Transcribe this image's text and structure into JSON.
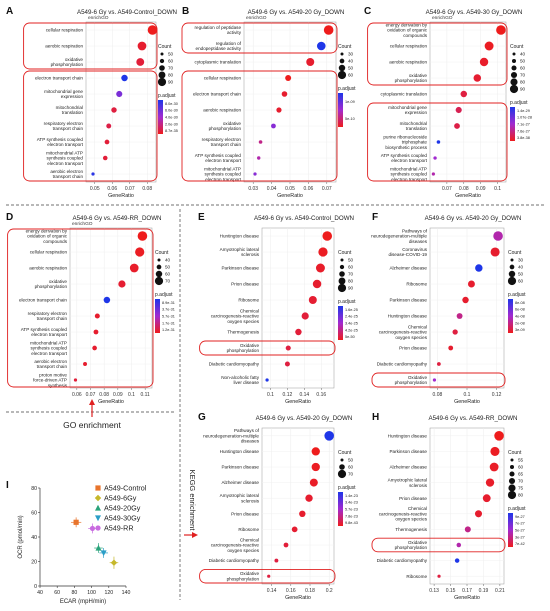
{
  "figure": {
    "section_labels": {
      "go": "GO enrichment",
      "kegg": "KEGG enrichment"
    },
    "size_legend_title": "Count",
    "color_legend_title": "p.adjust",
    "x_axis_label": "GeneRatio",
    "colors": {
      "low": "#ee1c1c",
      "mid": "#a22ad0",
      "high": "#1e36e8",
      "highlight_box": "#e02020"
    }
  },
  "chart_data": [
    {
      "id": "A",
      "type": "scatter",
      "title": "A549-6 Gy vs. A549-Control_DOWN",
      "subtitle": "enrichGO",
      "xlabel": "GeneRatio",
      "xticks": [
        0.05,
        0.06,
        0.07,
        0.08
      ],
      "xlim": [
        0.045,
        0.085
      ],
      "count_legend": [
        50,
        60,
        70,
        80,
        90
      ],
      "padj_legend": [
        "8.0e-30",
        "6.0e-30",
        "4.0e-30",
        "2.0e-30",
        "8.7e-35"
      ],
      "terms": [
        "cellular respiration",
        "aerobic respiration",
        "oxidative phosphorylation",
        "electron transport chain",
        "mitochondrial gene expression",
        "mitochondrial translation",
        "respiratory electron transport chain",
        "ATP synthesis coupled electron transport",
        "mitochondrial ATP synthesis coupled electron transport",
        "aerobic electron transport chain"
      ],
      "x": [
        0.083,
        0.077,
        0.076,
        0.067,
        0.064,
        0.061,
        0.058,
        0.057,
        0.056,
        0.049
      ],
      "count": [
        90,
        85,
        80,
        72,
        70,
        66,
        63,
        62,
        61,
        53
      ],
      "color": [
        0.0,
        0.05,
        0.08,
        1.0,
        0.65,
        0.1,
        0.12,
        0.08,
        0.08,
        0.95
      ],
      "boxes": [
        [
          0,
          2
        ],
        [
          3,
          9
        ]
      ]
    },
    {
      "id": "B",
      "type": "scatter",
      "title": "A549-6 Gy vs. A549-20 Gy_DOWN",
      "subtitle": "enrichGO",
      "xlabel": "GeneRatio",
      "xticks": [
        0.03,
        0.04,
        0.05,
        0.06,
        0.07
      ],
      "xlim": [
        0.025,
        0.075
      ],
      "count_legend": [
        30,
        40,
        50,
        60
      ],
      "padj_legend": [
        "1e-09",
        "5e-10"
      ],
      "terms": [
        "regulation of peptidase activity",
        "regulation of endopeptidase activity",
        "cytoplasmic translation",
        "cellular respiration",
        "electron transport chain",
        "aerobic respiration",
        "oxidative phosphorylation",
        "respiratory electron transport chain",
        "ATP synthesis coupled electron transport",
        "mitochondrial ATP synthesis coupled electron transport"
      ],
      "x": [
        0.071,
        0.067,
        0.061,
        0.049,
        0.047,
        0.044,
        0.041,
        0.034,
        0.033,
        0.031
      ],
      "count": [
        60,
        55,
        52,
        42,
        40,
        38,
        36,
        30,
        29,
        28
      ],
      "color": [
        0.0,
        1.0,
        0.05,
        0.0,
        0.05,
        0.05,
        0.6,
        0.3,
        0.4,
        0.6
      ],
      "boxes": [
        [
          0,
          1
        ],
        [
          3,
          9
        ]
      ]
    },
    {
      "id": "C",
      "type": "scatter",
      "title": "A549-6 Gy vs. A549-30 Gy_DOWN",
      "subtitle": "enrichGO",
      "xlabel": "GeneRatio",
      "xticks": [
        0.07,
        0.08,
        0.09,
        0.1
      ],
      "xlim": [
        0.06,
        0.105
      ],
      "count_legend": [
        40,
        50,
        60,
        70,
        80,
        90
      ],
      "padj_legend": [
        "1.4e-29",
        "1.07e-28",
        "7.1e-27",
        "7.6e-27",
        "3.8e-38"
      ],
      "terms": [
        "energy derivation by oxidation of organic compounds",
        "cellular respiration",
        "aerobic respiration",
        "oxidative phosphorylation",
        "cytoplasmic translation",
        "mitochondrial gene expression",
        "mitochondrial translation",
        "purine ribonucleoside triphosphate biosynthetic process",
        "ATP synthesis coupled electron transport",
        "mitochondrial ATP synthesis coupled electron transport"
      ],
      "x": [
        0.102,
        0.095,
        0.092,
        0.088,
        0.08,
        0.077,
        0.076,
        0.065,
        0.063,
        0.062
      ],
      "count": [
        90,
        86,
        83,
        78,
        72,
        70,
        68,
        55,
        54,
        53
      ],
      "color": [
        0.0,
        0.02,
        0.04,
        0.06,
        0.1,
        0.15,
        0.12,
        1.0,
        0.5,
        0.4
      ],
      "boxes": [
        [
          0,
          3
        ],
        [
          5,
          9
        ]
      ]
    },
    {
      "id": "D",
      "type": "scatter",
      "title": "A549-6 Gy vs. A549-RR_DOWN",
      "subtitle": "enrichGO",
      "xlabel": "GeneRatio",
      "xticks": [
        0.06,
        0.07,
        0.08,
        0.09,
        0.1,
        0.11
      ],
      "xlim": [
        0.055,
        0.115
      ],
      "count_legend": [
        40,
        50,
        60,
        70
      ],
      "padj_legend": [
        "8.9e-31",
        "3.7e-31",
        "5.7e-31",
        "1.7e-31",
        "1.2e-31"
      ],
      "terms": [
        "energy derivation by oxidation of organic compounds",
        "cellular respiration",
        "aerobic respiration",
        "oxidative phosphorylation",
        "electron transport chain",
        "respiratory electron transport chain",
        "ATP synthesis coupled electron transport",
        "mitochondrial ATP synthesis coupled electron transport",
        "aerobic electron transport chain",
        "proton motive force-driven ATP synthesis"
      ],
      "x": [
        0.108,
        0.106,
        0.102,
        0.093,
        0.082,
        0.075,
        0.074,
        0.073,
        0.066,
        0.059
      ],
      "count": [
        75,
        73,
        70,
        62,
        58,
        50,
        49,
        48,
        44,
        40
      ],
      "color": [
        0.0,
        0.02,
        0.04,
        0.06,
        1.0,
        0.05,
        0.05,
        0.05,
        0.05,
        0.08
      ],
      "boxes": [
        [
          0,
          9
        ]
      ]
    },
    {
      "id": "E",
      "type": "scatter",
      "title": "A549-6 Gy vs. A549-Control_DOWN",
      "subtitle": "",
      "xlabel": "GeneRatio",
      "xticks": [
        0.1,
        0.12,
        0.14,
        0.16
      ],
      "xlim": [
        0.09,
        0.175
      ],
      "count_legend": [
        50,
        60,
        70,
        80,
        90
      ],
      "padj_legend": [
        "1.6e-25",
        "2.4e-25",
        "3.4e-25",
        "4.2e-25",
        "5e-50"
      ],
      "terms": [
        "Huntington disease",
        "Amyotrophic lateral sclerosis",
        "Parkinson disease",
        "Prion disease",
        "Ribosome",
        "Chemical carcinogenesis-reactive oxygen species",
        "Thermogenesis",
        "Oxidative phosphorylation",
        "Diabetic cardiomyopathy",
        "Non-alcoholic fatty liver disease"
      ],
      "x": [
        0.167,
        0.162,
        0.159,
        0.155,
        0.15,
        0.141,
        0.133,
        0.121,
        0.12,
        0.096
      ],
      "count": [
        90,
        88,
        86,
        83,
        80,
        75,
        70,
        62,
        61,
        50
      ],
      "color": [
        0.0,
        0.02,
        0.04,
        0.05,
        0.06,
        0.08,
        0.08,
        0.1,
        0.1,
        1.0
      ],
      "boxes": [
        [
          7,
          7
        ]
      ]
    },
    {
      "id": "F",
      "type": "scatter",
      "title": "A549-6 Gy vs. A549-20 Gy_DOWN",
      "subtitle": "",
      "xlabel": "GeneRatio",
      "xticks": [
        0.08,
        0.1,
        0.12
      ],
      "xlim": [
        0.075,
        0.125
      ],
      "count_legend": [
        30,
        40,
        50,
        60
      ],
      "padj_legend": [
        "8e-08",
        "6e-08",
        "4e-08",
        "2e-08",
        "3e-09"
      ],
      "terms": [
        "Pathways of neurodegeneration-multiple diseases",
        "Coronavirus disease-COVID-19",
        "Alzheimer disease",
        "Ribosome",
        "Parkinson disease",
        "Huntington disease",
        "Chemical carcinogenesis-reactive oxygen species",
        "Prion disease",
        "Diabetic cardiomyopathy",
        "Oxidative phosphorylation"
      ],
      "x": [
        0.121,
        0.119,
        0.108,
        0.103,
        0.099,
        0.095,
        0.092,
        0.089,
        0.081,
        0.078
      ],
      "count": [
        60,
        58,
        52,
        50,
        48,
        46,
        44,
        42,
        38,
        36
      ],
      "color": [
        0.4,
        0.05,
        1.0,
        0.05,
        0.05,
        0.3,
        0.1,
        0.05,
        0.1,
        0.5
      ],
      "boxes": [
        [
          9,
          9
        ]
      ]
    },
    {
      "id": "G",
      "type": "scatter",
      "title": "A549-6 Gy vs. A549-20 Gy_DOWN",
      "subtitle": "",
      "xlabel": "GeneRatio",
      "xticks": [
        0.14,
        0.16,
        0.18,
        0.2
      ],
      "xlim": [
        0.13,
        0.205
      ],
      "count_legend": [
        50,
        60,
        70
      ],
      "padj_legend": [
        "1.4e-23",
        "3.4e-23",
        "5.7e-23",
        "7.8e-23",
        "9.8e-43"
      ],
      "terms": [
        "Pathways of neurodegeneration-multiple diseases",
        "Huntington disease",
        "Parkinson disease",
        "Alzheimer disease",
        "Amyotrophic lateral sclerosis",
        "Prion disease",
        "Ribosome",
        "Chemical carcinogenesis-reactive oxygen species",
        "Diabetic cardiomyopathy",
        "Oxidative phosphorylation"
      ],
      "x": [
        0.2,
        0.186,
        0.186,
        0.184,
        0.179,
        0.172,
        0.164,
        0.155,
        0.145,
        0.137
      ],
      "count": [
        70,
        66,
        66,
        65,
        63,
        60,
        58,
        55,
        52,
        50
      ],
      "color": [
        1.0,
        0.0,
        0.02,
        0.03,
        0.05,
        0.05,
        0.06,
        0.08,
        0.1,
        0.1
      ],
      "boxes": [
        [
          9,
          9
        ]
      ]
    },
    {
      "id": "H",
      "type": "scatter",
      "title": "A549-6 Gy vs. A549-RR_DOWN",
      "subtitle": "",
      "xlabel": "GeneRatio",
      "xticks": [
        0.13,
        0.15,
        0.17,
        0.19,
        0.21
      ],
      "xlim": [
        0.125,
        0.215
      ],
      "count_legend": [
        55,
        60,
        65,
        70,
        75,
        80
      ],
      "padj_legend": [
        "9e-27",
        "7e-27",
        "5e-27",
        "3e-27",
        "7e-42"
      ],
      "terms": [
        "Huntington disease",
        "Parkinson disease",
        "Alzheimer disease",
        "Amyotrophic lateral sclerosis",
        "Prion disease",
        "Chemical carcinogenesis-reactive oxygen species",
        "Thermogenesis",
        "Oxidative phosphorylation",
        "Diabetic cardiomyopathy",
        "Ribosome"
      ],
      "x": [
        0.209,
        0.204,
        0.203,
        0.198,
        0.194,
        0.184,
        0.171,
        0.16,
        0.158,
        0.136
      ],
      "count": [
        80,
        78,
        77,
        75,
        73,
        70,
        66,
        60,
        60,
        55
      ],
      "color": [
        0.0,
        0.02,
        0.03,
        0.04,
        0.05,
        0.05,
        0.3,
        0.4,
        1.0,
        0.1
      ],
      "boxes": [
        [
          7,
          7
        ]
      ]
    },
    {
      "id": "I",
      "type": "scatter",
      "title": "",
      "xlabel": "ECAR (mpH/min)",
      "ylabel": "OCR (pmol/min)",
      "xlim": [
        40,
        140
      ],
      "ylim": [
        0,
        80
      ],
      "xticks": [
        40,
        60,
        80,
        100,
        120,
        140
      ],
      "yticks": [
        0,
        20,
        40,
        60,
        80
      ],
      "series": [
        {
          "name": "A549-Control",
          "marker": "square",
          "color": "#e8742c",
          "x": 82,
          "y": 52,
          "xerr": 6,
          "yerr": 4
        },
        {
          "name": "A549-6Gy",
          "marker": "diamond",
          "color": "#c6b82a",
          "x": 126,
          "y": 19,
          "xerr": 5,
          "yerr": 5
        },
        {
          "name": "A549-20Gy",
          "marker": "triangle-up",
          "color": "#2aa37a",
          "x": 108,
          "y": 31,
          "xerr": 5,
          "yerr": 4
        },
        {
          "name": "A549-30Gy",
          "marker": "triangle-down",
          "color": "#2a9ec7",
          "x": 114,
          "y": 27,
          "xerr": 5,
          "yerr": 4
        },
        {
          "name": "A549-RR",
          "marker": "circle",
          "color": "#c86be0",
          "x": 101,
          "y": 47,
          "xerr": 5,
          "yerr": 4
        }
      ]
    }
  ]
}
